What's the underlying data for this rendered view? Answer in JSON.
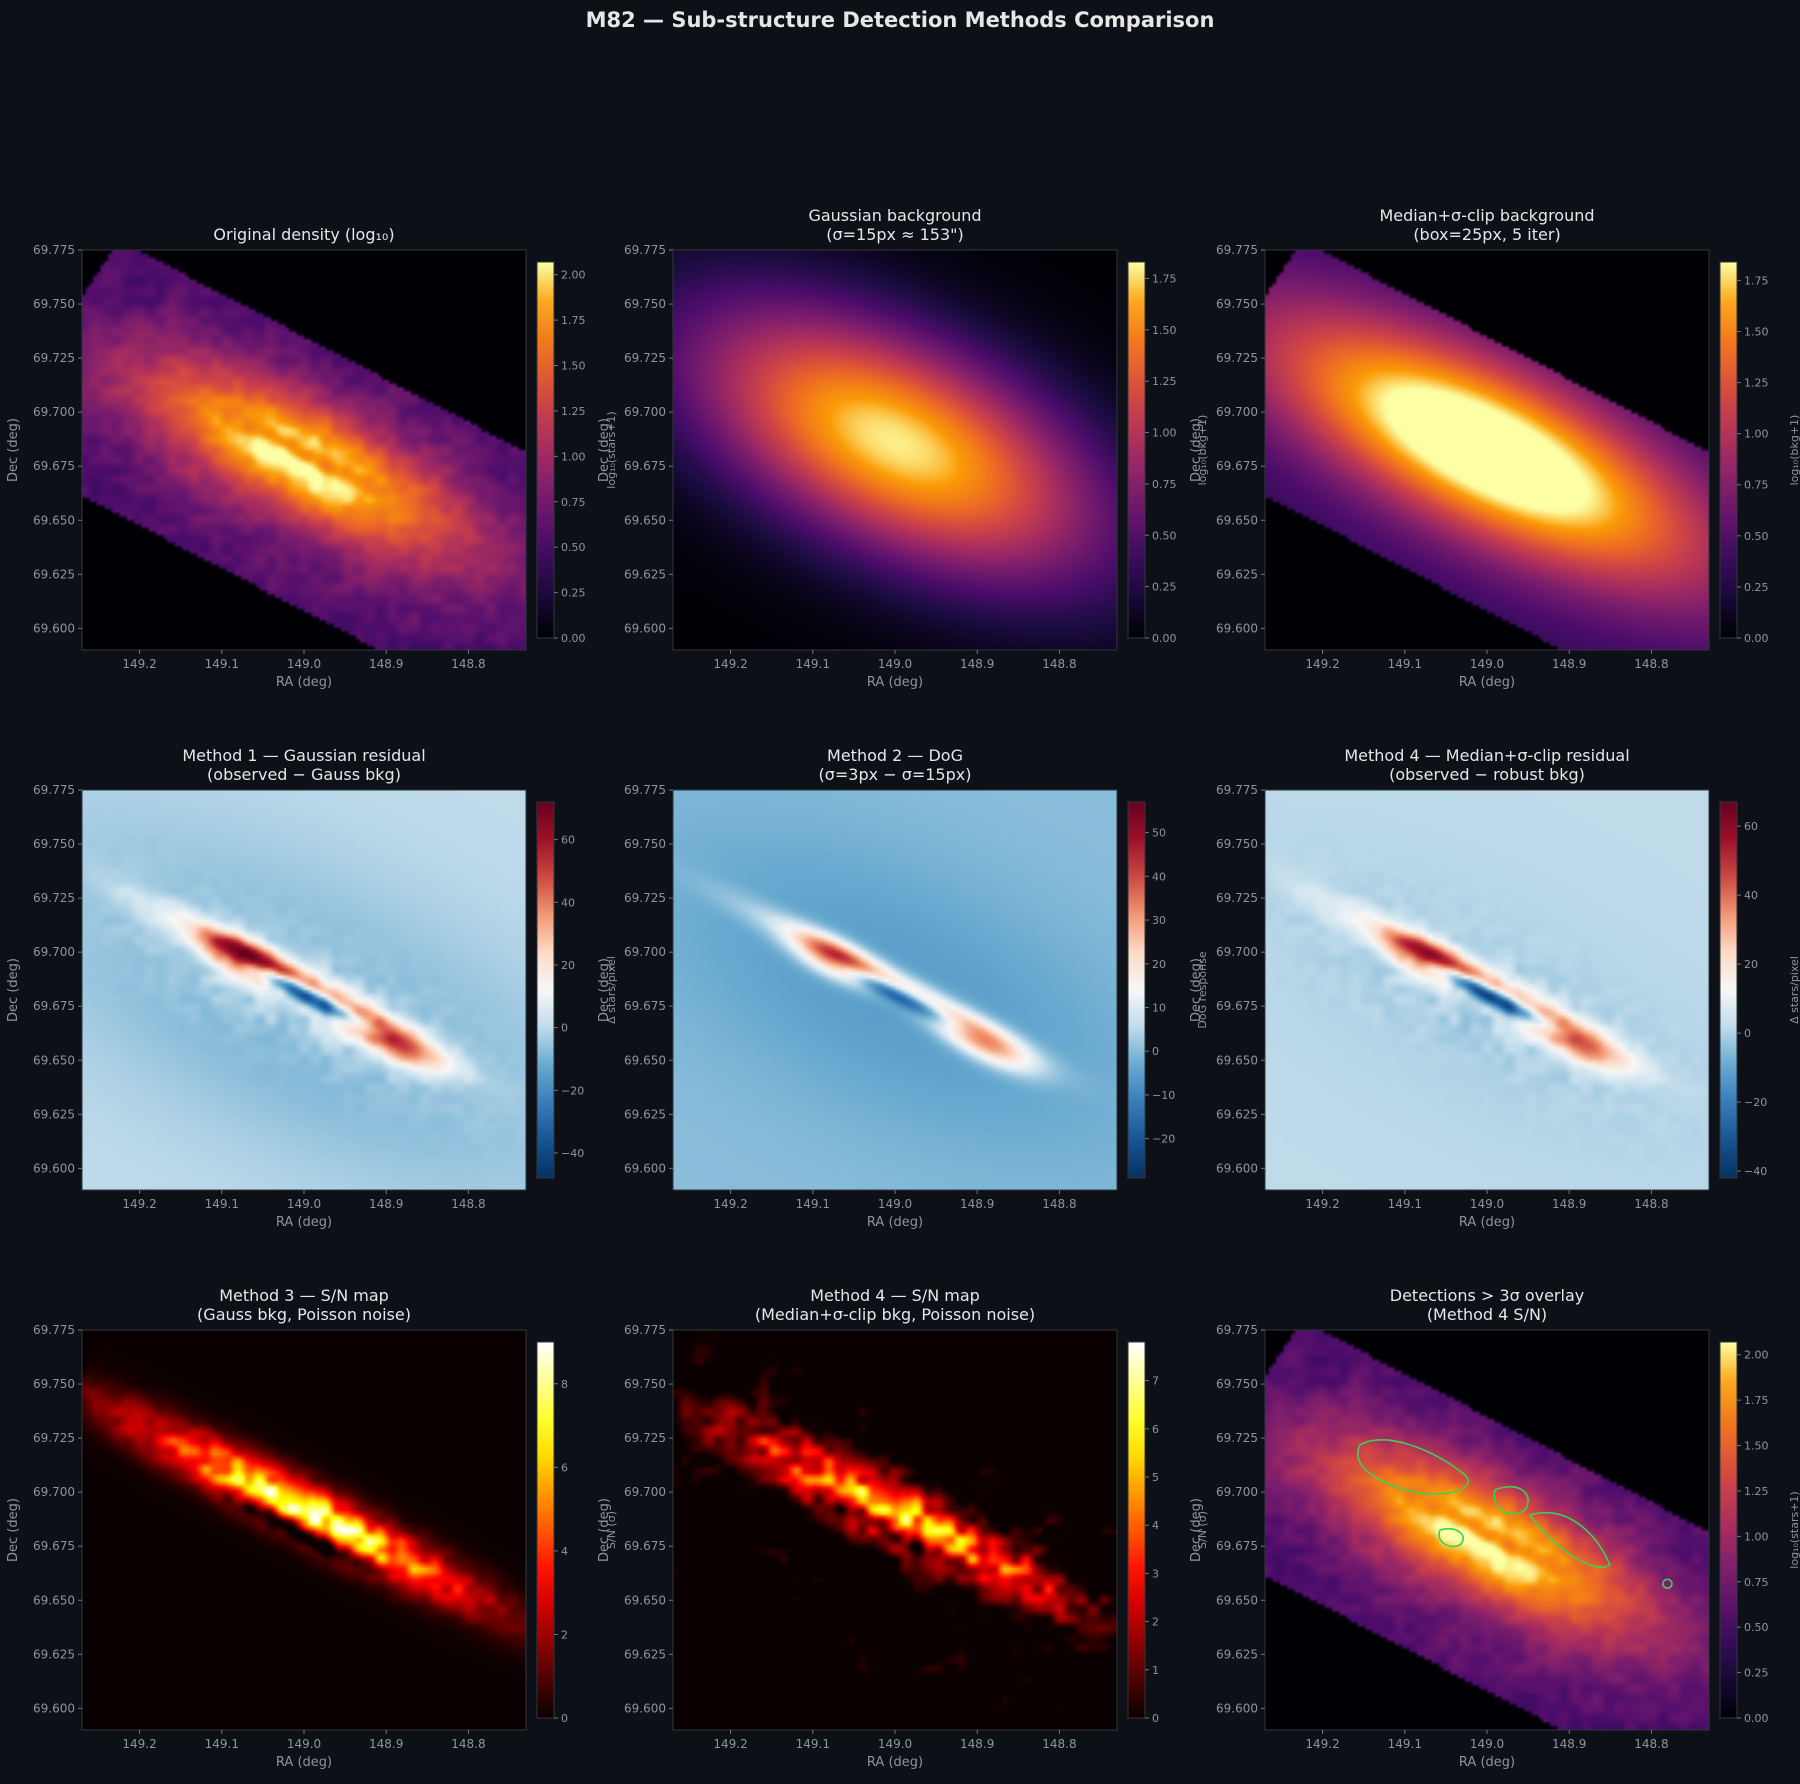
{
  "figure": {
    "title": "M82 — Sub-structure Detection Methods Comparison"
  },
  "chart_data": [
    {
      "type": "heatmap",
      "title": "Original density (log₁₀)",
      "xlabel": "RA (deg)",
      "ylabel": "Dec (deg)",
      "xlim": [
        149.27,
        148.73
      ],
      "ylim": [
        69.59,
        69.775
      ],
      "x_ticks": [
        "149.2",
        "149.1",
        "149.0",
        "148.9",
        "148.8"
      ],
      "y_ticks": [
        "69.775",
        "69.750",
        "69.725",
        "69.700",
        "69.675",
        "69.650",
        "69.625",
        "69.600"
      ],
      "colormap": "inferno",
      "colorbar": {
        "label": "log₁₀(stars+1)",
        "range": [
          0,
          2.07
        ],
        "ticks": [
          "0.00",
          "0.25",
          "0.50",
          "0.75",
          "1.00",
          "1.25",
          "1.50",
          "1.75",
          "2.00"
        ]
      },
      "mode": "density"
    },
    {
      "type": "heatmap",
      "title": "Gaussian background\n(σ=15px ≈ 153\")",
      "xlabel": "RA (deg)",
      "ylabel": "Dec (deg)",
      "xlim": [
        149.27,
        148.73
      ],
      "ylim": [
        69.59,
        69.775
      ],
      "x_ticks": [
        "149.2",
        "149.1",
        "149.0",
        "148.9",
        "148.8"
      ],
      "y_ticks": [
        "69.775",
        "69.750",
        "69.725",
        "69.700",
        "69.675",
        "69.650",
        "69.625",
        "69.600"
      ],
      "colormap": "inferno",
      "colorbar": {
        "label": "log₁₀(bkg+1)",
        "range": [
          0,
          1.83
        ],
        "ticks": [
          "0.00",
          "0.25",
          "0.50",
          "0.75",
          "1.00",
          "1.25",
          "1.50",
          "1.75"
        ]
      },
      "mode": "gauss_bkg"
    },
    {
      "type": "heatmap",
      "title": "Median+σ-clip background\n(box=25px, 5 iter)",
      "xlabel": "RA (deg)",
      "ylabel": "Dec (deg)",
      "xlim": [
        149.27,
        148.73
      ],
      "ylim": [
        69.59,
        69.775
      ],
      "x_ticks": [
        "149.2",
        "149.1",
        "149.0",
        "148.9",
        "148.8"
      ],
      "y_ticks": [
        "69.775",
        "69.750",
        "69.725",
        "69.700",
        "69.675",
        "69.650",
        "69.625",
        "69.600"
      ],
      "colormap": "inferno",
      "colorbar": {
        "label": "log₁₀(bkg+1)",
        "range": [
          0,
          1.84
        ],
        "ticks": [
          "0.00",
          "0.25",
          "0.50",
          "0.75",
          "1.00",
          "1.25",
          "1.50",
          "1.75"
        ]
      },
      "mode": "median_bkg"
    },
    {
      "type": "heatmap",
      "title": "Method 1 — Gaussian residual\n(observed − Gauss bkg)",
      "xlabel": "RA (deg)",
      "ylabel": "Dec (deg)",
      "xlim": [
        149.27,
        148.73
      ],
      "ylim": [
        69.59,
        69.775
      ],
      "x_ticks": [
        "149.2",
        "149.1",
        "149.0",
        "148.9",
        "148.8"
      ],
      "y_ticks": [
        "69.775",
        "69.750",
        "69.725",
        "69.700",
        "69.675",
        "69.650",
        "69.625",
        "69.600"
      ],
      "colormap": "RdBu_r",
      "colorbar": {
        "label": "Δ stars/pixel",
        "range": [
          -48,
          72
        ],
        "ticks": [
          "−40",
          "−20",
          "0",
          "20",
          "40",
          "60"
        ]
      },
      "mode": "resid_gauss"
    },
    {
      "type": "heatmap",
      "title": "Method 2 — DoG\n(σ=3px − σ=15px)",
      "xlabel": "RA (deg)",
      "ylabel": "Dec (deg)",
      "xlim": [
        149.27,
        148.73
      ],
      "ylim": [
        69.59,
        69.775
      ],
      "x_ticks": [
        "149.2",
        "149.1",
        "149.0",
        "148.9",
        "148.8"
      ],
      "y_ticks": [
        "69.775",
        "69.750",
        "69.725",
        "69.700",
        "69.675",
        "69.650",
        "69.625",
        "69.600"
      ],
      "colormap": "RdBu_r",
      "colorbar": {
        "label": "DoG response",
        "range": [
          -29,
          57
        ],
        "ticks": [
          "−20",
          "−10",
          "0",
          "10",
          "20",
          "30",
          "40",
          "50"
        ]
      },
      "mode": "dog"
    },
    {
      "type": "heatmap",
      "title": "Method 4 — Median+σ-clip residual\n(observed − robust bkg)",
      "xlabel": "RA (deg)",
      "ylabel": "Dec (deg)",
      "xlim": [
        149.27,
        148.73
      ],
      "ylim": [
        69.59,
        69.775
      ],
      "x_ticks": [
        "149.2",
        "149.1",
        "149.0",
        "148.9",
        "148.8"
      ],
      "y_ticks": [
        "69.775",
        "69.750",
        "69.725",
        "69.700",
        "69.675",
        "69.650",
        "69.625",
        "69.600"
      ],
      "colormap": "RdBu_r",
      "colorbar": {
        "label": "Δ stars/pixel",
        "range": [
          -42,
          67
        ],
        "ticks": [
          "−40",
          "−20",
          "0",
          "20",
          "40",
          "60"
        ]
      },
      "mode": "resid_median"
    },
    {
      "type": "heatmap",
      "title": "Method 3 — S/N map\n(Gauss bkg, Poisson noise)",
      "xlabel": "RA (deg)",
      "ylabel": "Dec (deg)",
      "xlim": [
        149.27,
        148.73
      ],
      "ylim": [
        69.59,
        69.775
      ],
      "x_ticks": [
        "149.2",
        "149.1",
        "149.0",
        "148.9",
        "148.8"
      ],
      "y_ticks": [
        "69.775",
        "69.750",
        "69.725",
        "69.700",
        "69.675",
        "69.650",
        "69.625",
        "69.600"
      ],
      "colormap": "hot",
      "colorbar": {
        "label": "S/N (σ)",
        "range": [
          0,
          9
        ],
        "ticks": [
          "0",
          "2",
          "4",
          "6",
          "8"
        ]
      },
      "mode": "sn_gauss"
    },
    {
      "type": "heatmap",
      "title": "Method 4 — S/N map\n(Median+σ-clip bkg, Poisson noise)",
      "xlabel": "RA (deg)",
      "ylabel": "Dec (deg)",
      "xlim": [
        149.27,
        148.73
      ],
      "ylim": [
        69.59,
        69.775
      ],
      "x_ticks": [
        "149.2",
        "149.1",
        "149.0",
        "148.9",
        "148.8"
      ],
      "y_ticks": [
        "69.775",
        "69.750",
        "69.725",
        "69.700",
        "69.675",
        "69.650",
        "69.625",
        "69.600"
      ],
      "colormap": "hot",
      "colorbar": {
        "label": "S/N (σ)",
        "range": [
          0,
          7.8
        ],
        "ticks": [
          "0",
          "1",
          "2",
          "3",
          "4",
          "5",
          "6",
          "7"
        ]
      },
      "mode": "sn_median"
    },
    {
      "type": "heatmap",
      "title": "Detections > 3σ overlay\n(Method 4 S/N)",
      "xlabel": "RA (deg)",
      "ylabel": "Dec (deg)",
      "xlim": [
        149.27,
        148.73
      ],
      "ylim": [
        69.59,
        69.775
      ],
      "x_ticks": [
        "149.2",
        "149.1",
        "149.0",
        "148.9",
        "148.8"
      ],
      "y_ticks": [
        "69.775",
        "69.750",
        "69.725",
        "69.700",
        "69.675",
        "69.650",
        "69.625",
        "69.600"
      ],
      "colormap": "inferno",
      "colorbar": {
        "label": "log₁₀(stars+1)",
        "range": [
          0,
          2.07
        ],
        "ticks": [
          "0.00",
          "0.25",
          "0.50",
          "0.75",
          "1.00",
          "1.25",
          "1.50",
          "1.75",
          "2.00"
        ]
      },
      "contour_color": "#39d353",
      "mode": "overlay"
    }
  ]
}
